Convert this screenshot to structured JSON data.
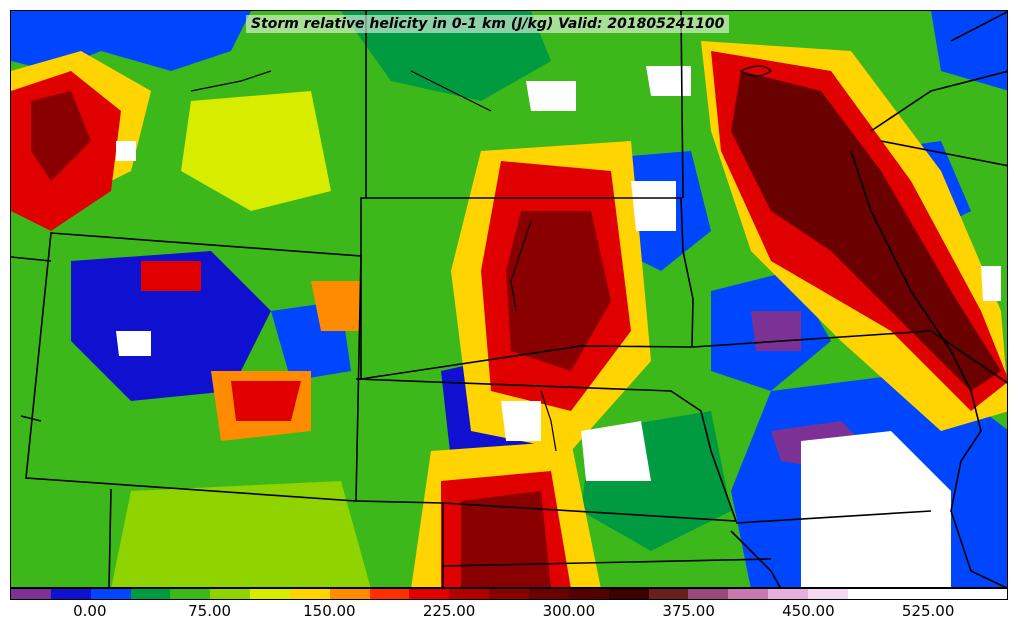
{
  "title": "Storm relative helicity in 0-1 km (J/kg) Valid: 201805241100",
  "colorbar": {
    "min": -50,
    "max": 575,
    "step": 25,
    "colors": [
      "#7b3294",
      "#1010d0",
      "#0046ff",
      "#009a40",
      "#3cb81a",
      "#8fd400",
      "#d8ec00",
      "#ffd400",
      "#ff8c00",
      "#ff3000",
      "#e00000",
      "#b00000",
      "#8a0000",
      "#6a0000",
      "#520000",
      "#3c0000",
      "#6a1f1f",
      "#9a4a7a",
      "#c87ab0",
      "#e6b0dc",
      "#f4d8f0",
      "#ffffff",
      "#ffffff",
      "#ffffff",
      "#ffffff"
    ],
    "tick_labels": [
      "0.00",
      "75.00",
      "150.00",
      "225.00",
      "300.00",
      "375.00",
      "450.00",
      "525.00"
    ],
    "tick_values": [
      0,
      75,
      150,
      225,
      300,
      375,
      450,
      525
    ]
  }
}
